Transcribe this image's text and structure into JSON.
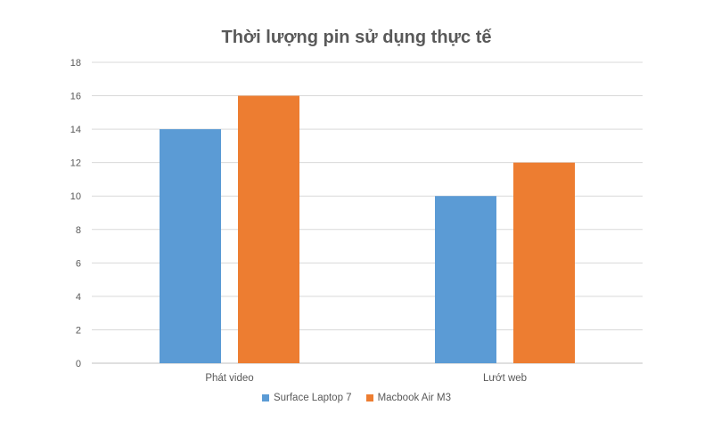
{
  "chart_data": {
    "type": "bar",
    "title": "Thời lượng pin sử dụng thực tế",
    "categories": [
      "Phát video",
      "Lướt web"
    ],
    "series": [
      {
        "name": "Surface Laptop 7",
        "values": [
          14,
          10
        ],
        "color": "#5B9BD5"
      },
      {
        "name": "Macbook Air M3",
        "values": [
          16,
          12
        ],
        "color": "#ED7D31"
      }
    ],
    "ylim": [
      0,
      18
    ],
    "yticks": [
      0,
      2,
      4,
      6,
      8,
      10,
      12,
      14,
      16,
      18
    ],
    "grid": true,
    "legend_position": "bottom"
  }
}
